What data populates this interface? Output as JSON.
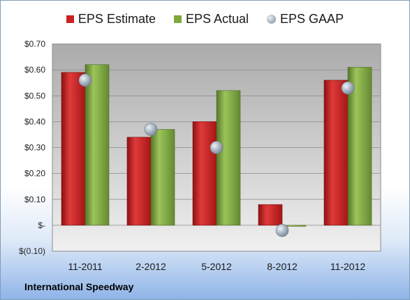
{
  "chart_data": {
    "type": "bar",
    "categories": [
      "11-2011",
      "2-2012",
      "5-2012",
      "8-2012",
      "11-2012"
    ],
    "series": [
      {
        "name": "EPS Estimate",
        "values": [
          0.59,
          0.34,
          0.4,
          0.08,
          0.56
        ],
        "color": "#cc2222",
        "kind": "bar"
      },
      {
        "name": "EPS Actual",
        "values": [
          0.62,
          0.37,
          0.52,
          0.0,
          0.61
        ],
        "color": "#7fa83c",
        "kind": "bar"
      },
      {
        "name": "EPS GAAP",
        "values": [
          0.56,
          0.37,
          0.3,
          -0.02,
          0.53
        ],
        "color": "#a8b4c2",
        "kind": "marker"
      }
    ],
    "yticks": [
      -0.1,
      0.0,
      0.1,
      0.2,
      0.3,
      0.4,
      0.5,
      0.6,
      0.7
    ],
    "ytick_labels": [
      "$(0.10)",
      "$-",
      "$0.10",
      "$0.20",
      "$0.30",
      "$0.40",
      "$0.50",
      "$0.60",
      "$0.70"
    ],
    "ylim": [
      -0.1,
      0.7
    ],
    "legend_position": "top",
    "grid": true
  },
  "company": "International Speedway"
}
